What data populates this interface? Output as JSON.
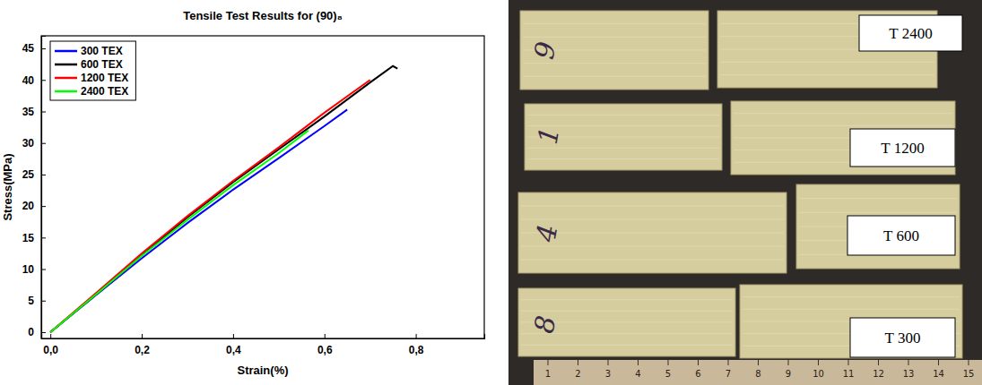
{
  "chart_data": {
    "type": "line",
    "title": "Tensile Test Results for (90)₈",
    "x_label": "Strain(%)",
    "y_label": "Stress(MPa)",
    "xlim": [
      -0.02,
      0.95
    ],
    "ylim": [
      -1,
      47
    ],
    "xticks": [
      {
        "value": 0,
        "label": "0,0"
      },
      {
        "value": 0.2,
        "label": "0,2"
      },
      {
        "value": 0.4,
        "label": "0,4"
      },
      {
        "value": 0.6,
        "label": "0,6"
      },
      {
        "value": 0.8,
        "label": "0,8"
      }
    ],
    "yticks": [
      0,
      5,
      10,
      15,
      20,
      25,
      30,
      35,
      40,
      45
    ],
    "grid": false,
    "legend": "upper left",
    "series": [
      {
        "name": "300 TEX",
        "color": "#0000ff",
        "x": [
          0,
          0.1,
          0.2,
          0.3,
          0.4,
          0.5,
          0.6,
          0.65
        ],
        "values": [
          0,
          5.9,
          11.7,
          17.3,
          22.6,
          27.6,
          32.7,
          35.3
        ]
      },
      {
        "name": "600 TEX",
        "color": "#000000",
        "x": [
          0,
          0.1,
          0.2,
          0.3,
          0.4,
          0.5,
          0.6,
          0.7,
          0.75,
          0.76
        ],
        "values": [
          0,
          6.0,
          12.2,
          18.2,
          23.8,
          29.0,
          34.2,
          39.6,
          42.2,
          41.8
        ]
      },
      {
        "name": "1200 TEX",
        "color": "#ff0000",
        "x": [
          0,
          0.1,
          0.2,
          0.3,
          0.4,
          0.5,
          0.6,
          0.7
        ],
        "values": [
          0,
          6.2,
          12.5,
          18.4,
          24.0,
          29.3,
          34.8,
          40.0
        ]
      },
      {
        "name": "2400 TEX",
        "color": "#00ff00",
        "x": [
          0,
          0.1,
          0.2,
          0.3,
          0.4,
          0.5,
          0.565
        ],
        "values": [
          0,
          6.0,
          12.1,
          17.8,
          23.3,
          28.4,
          32.0
        ]
      }
    ]
  },
  "photo": {
    "labels": [
      "T 2400",
      "T 1200",
      "T 600",
      "T 300"
    ],
    "specimen_ids": [
      "9",
      "1",
      "4",
      "8"
    ],
    "ruler_ticks": [
      1,
      2,
      3,
      4,
      5,
      6,
      7,
      8,
      9,
      10,
      11,
      12,
      13,
      14,
      15
    ]
  }
}
